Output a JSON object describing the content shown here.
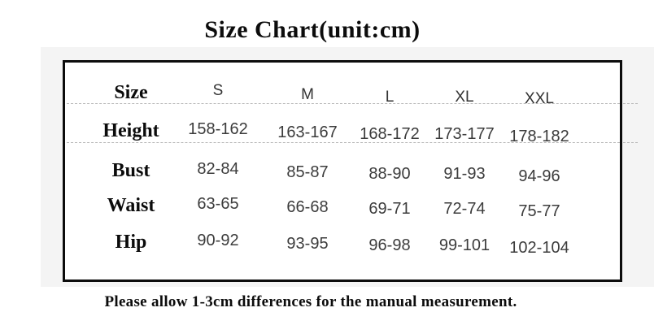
{
  "title": "Size Chart(unit:cm)",
  "note": "Please allow 1-3cm differences for the manual measurement.",
  "table": {
    "header": [
      "Size",
      "S",
      "M",
      "L",
      "XL",
      "XXL"
    ],
    "rows": [
      {
        "label": "Height",
        "values": [
          "158-162",
          "163-167",
          "168-172",
          "173-177",
          "178-182"
        ]
      },
      {
        "label": "Bust",
        "values": [
          "82-84",
          "85-87",
          "88-90",
          "91-93",
          "94-96"
        ]
      },
      {
        "label": "Waist",
        "values": [
          "63-65",
          "66-68",
          "69-71",
          "72-74",
          "75-77"
        ]
      },
      {
        "label": "Hip",
        "values": [
          "90-92",
          "93-95",
          "96-98",
          "99-101",
          "102-104"
        ]
      }
    ]
  },
  "colors": {
    "table_border": "#0c0c0c",
    "background_band": "#f4f4f4",
    "dashed_line": "#b8b8b8",
    "value_text": "#3c3c3c",
    "label_text": "#0b0b0b"
  }
}
